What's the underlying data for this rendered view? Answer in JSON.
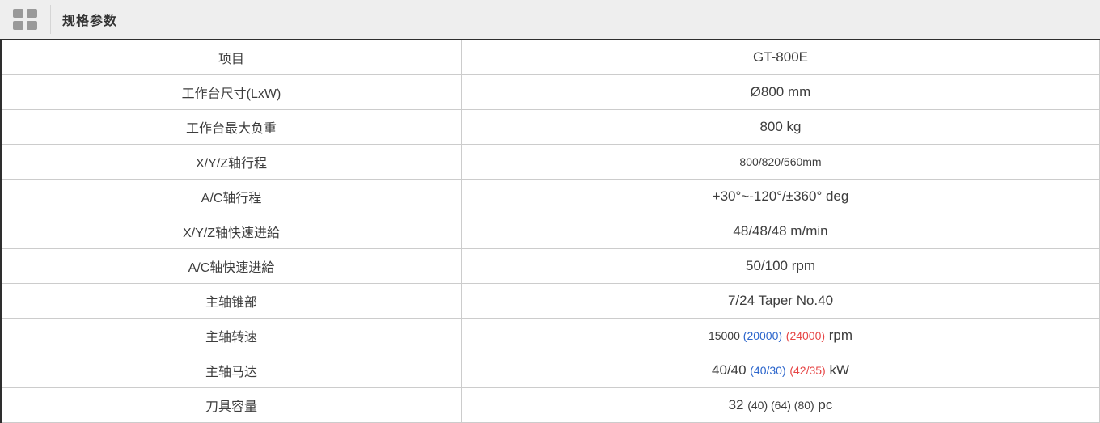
{
  "header": {
    "title": "规格参数",
    "icon": "grid-icon"
  },
  "colors": {
    "header_bg": "#eeeeee",
    "icon_gray": "#999999",
    "border_dark": "#2e2e2e",
    "border_light": "#cccccc",
    "text": "#3d3d3d",
    "accent_blue": "#2b65cc",
    "accent_red": "#e64545"
  },
  "table": {
    "columns": [
      "label",
      "value"
    ],
    "rows": [
      {
        "label": "项目",
        "value": [
          {
            "text": "GT-800E"
          }
        ]
      },
      {
        "label": "工作台尺寸(LxW)",
        "value": [
          {
            "text": "Ø800 mm"
          }
        ]
      },
      {
        "label": "工作台最大负重",
        "value": [
          {
            "text": "800 kg"
          }
        ]
      },
      {
        "label": "X/Y/Z轴行程",
        "value": [
          {
            "text": "800/820/560mm",
            "size": "small"
          }
        ]
      },
      {
        "label": "A/C轴行程",
        "value": [
          {
            "text": "+30°~-120°/±360° deg"
          }
        ]
      },
      {
        "label": "X/Y/Z轴快速进給",
        "value": [
          {
            "text": "48/48/48 m/min"
          }
        ]
      },
      {
        "label": "A/C轴快速进給",
        "value": [
          {
            "text": "50/100 rpm"
          }
        ]
      },
      {
        "label": "主轴锥部",
        "value": [
          {
            "text": "7/24 Taper No.40"
          }
        ]
      },
      {
        "label": "主轴转速",
        "value": [
          {
            "text": "15000 ",
            "size": "small"
          },
          {
            "text": "(20000)",
            "size": "small",
            "color": "blue"
          },
          {
            "text": " "
          },
          {
            "text": "(24000)",
            "size": "small",
            "color": "red"
          },
          {
            "text": " rpm"
          }
        ]
      },
      {
        "label": "主轴马达",
        "value": [
          {
            "text": "40/40 "
          },
          {
            "text": "(40/30)",
            "size": "small",
            "color": "blue"
          },
          {
            "text": " "
          },
          {
            "text": "(42/35)",
            "size": "small",
            "color": "red"
          },
          {
            "text": " kW"
          }
        ]
      },
      {
        "label": "刀具容量",
        "value": [
          {
            "text": "32 "
          },
          {
            "text": "(40) (64) (80)",
            "size": "small"
          },
          {
            "text": " pc"
          }
        ]
      }
    ]
  }
}
